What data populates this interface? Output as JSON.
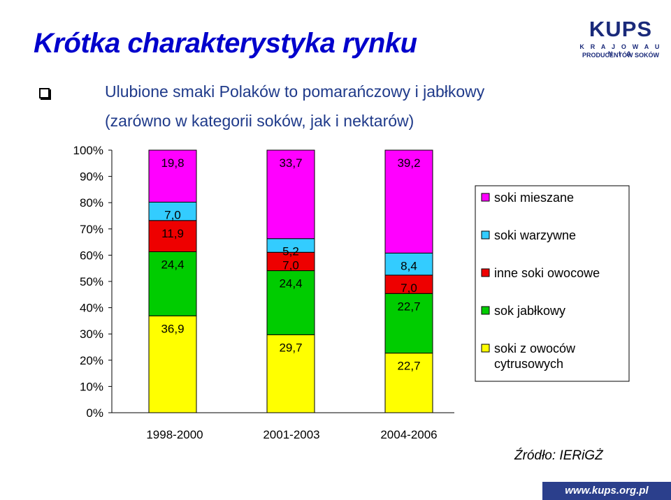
{
  "page": {
    "title": "Krótka charakterystyka rynku",
    "bullet_line1": "Ulubione smaki Polaków to pomarańczowy i jabłkowy",
    "bullet_line2": "(zarówno w kategorii soków, jak i nektarów)",
    "source": "Źródło: IERiGŻ",
    "logo": {
      "main": "KUPS",
      "sub1": "K R A J O W A   U N I A",
      "sub2": "PRODUCENTÓW SOKÓW"
    },
    "url": "www.kups.org.pl"
  },
  "chart_data": {
    "type": "bar",
    "stacked": true,
    "categories": [
      "1998-2000",
      "2001-2003",
      "2004-2006"
    ],
    "ytick_labels": [
      "0%",
      "10%",
      "20%",
      "30%",
      "40%",
      "50%",
      "60%",
      "70%",
      "80%",
      "90%",
      "100%"
    ],
    "ylim": [
      0,
      100
    ],
    "legend_position": "right",
    "series": [
      {
        "name": "soki z owoców cytrusowych",
        "color": "#ffff00",
        "values": [
          36.9,
          29.7,
          22.7
        ],
        "labels": [
          "36,9",
          "29,7",
          "22,7"
        ]
      },
      {
        "name": "sok jabłkowy",
        "color": "#00cc00",
        "values": [
          24.4,
          24.4,
          22.7
        ],
        "labels": [
          "24,4",
          "24,4",
          "22,7"
        ]
      },
      {
        "name": "inne soki owocowe",
        "color": "#ee0000",
        "values": [
          11.9,
          7.0,
          7.0
        ],
        "labels": [
          "11,9",
          "7,0",
          "7,0"
        ]
      },
      {
        "name": "soki warzywne",
        "color": "#33ccff",
        "values": [
          7.0,
          5.2,
          8.4
        ],
        "labels": [
          "7,0",
          "5,2",
          "8,4"
        ]
      },
      {
        "name": "soki mieszane",
        "color": "#ff00ff",
        "values": [
          19.8,
          33.7,
          39.2
        ],
        "labels": [
          "19,8",
          "33,7",
          "39,2"
        ]
      }
    ]
  }
}
